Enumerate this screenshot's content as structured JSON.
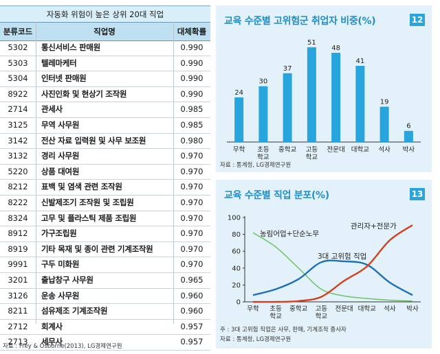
{
  "table": {
    "title": "자동화 위험이 높은 상위 20대 직업",
    "headers": [
      "분류코드",
      "직업명",
      "대체확률"
    ],
    "rows": [
      [
        "5302",
        "통신서비스 판매원",
        "0.990"
      ],
      [
        "5303",
        "텔레마케터",
        "0.990"
      ],
      [
        "5304",
        "인터넷 판매원",
        "0.990"
      ],
      [
        "8922",
        "사진인화 및 현상기 조작원",
        "0.990"
      ],
      [
        "2714",
        "관세사",
        "0.985"
      ],
      [
        "3125",
        "무역 사무원",
        "0.985"
      ],
      [
        "3142",
        "전산 자료 입력원 및 사무 보조원",
        "0.980"
      ],
      [
        "3132",
        "경리 사무원",
        "0.970"
      ],
      [
        "5220",
        "상품 대여원",
        "0.970"
      ],
      [
        "8212",
        "표백 및 염색 관련 조작원",
        "0.970"
      ],
      [
        "8222",
        "신발제조기 조작원 및 조립원",
        "0.970"
      ],
      [
        "8324",
        "고무 및 플라스틱 제품 조립원",
        "0.970"
      ],
      [
        "8912",
        "가구조립원",
        "0.970"
      ],
      [
        "8919",
        "기타 목재 및 종이 관련 기계조작원",
        "0.970"
      ],
      [
        "9991",
        "구두 미화원",
        "0.970"
      ],
      [
        "3201",
        "출납창구 사무원",
        "0.965"
      ],
      [
        "3126",
        "운송 사무원",
        "0.960"
      ],
      [
        "8211",
        "섬유제조 기계조작원",
        "0.960"
      ],
      [
        "2712",
        "회계사",
        "0.957"
      ],
      [
        "2713",
        "세무사",
        "0.957"
      ]
    ],
    "source": "자료 : Frey & Osborne(2013), LG경제연구원"
  },
  "chart_data": [
    {
      "type": "bar",
      "title": "교육 수준별 고위험군 취업자 비중(%)",
      "badge": "12",
      "categories": [
        "무학",
        "초등\n학교",
        "중학교",
        "고등\n학교",
        "전문대",
        "대학교",
        "석사",
        "박사"
      ],
      "values": [
        24,
        30,
        37,
        51,
        48,
        41,
        19,
        6
      ],
      "ylim": [
        0,
        55
      ],
      "color": "#29a5de",
      "source": "자료 : 통계청, LG경제연구원"
    },
    {
      "type": "line",
      "title": "교육 수준별 직업 분포(%)",
      "badge": "13",
      "categories": [
        "무학",
        "초등\n학교",
        "중학교",
        "고등\n학교",
        "전문대",
        "대학교",
        "석사",
        "박사"
      ],
      "yticks": [
        "0",
        "20",
        "40",
        "60",
        "80",
        "100"
      ],
      "ylim": [
        0,
        100
      ],
      "series": [
        {
          "name": "농림어업+단순노무",
          "color": "#74c56f",
          "values": [
            82,
            65,
            40,
            15,
            7,
            4,
            2,
            1
          ]
        },
        {
          "name": "3대 고위험 직업",
          "color": "#1f6fb5",
          "values": [
            8,
            15,
            27,
            47,
            48,
            44,
            23,
            8
          ]
        },
        {
          "name": "관리자+전문가",
          "color": "#d5401b",
          "values": [
            0,
            0,
            1,
            6,
            25,
            42,
            73,
            91
          ]
        }
      ],
      "notes": [
        "주 : 3대 고위험 직업은 사무, 판매, 기계조작 종사자",
        "자료 : 통계청, LG경제연구원"
      ]
    }
  ]
}
